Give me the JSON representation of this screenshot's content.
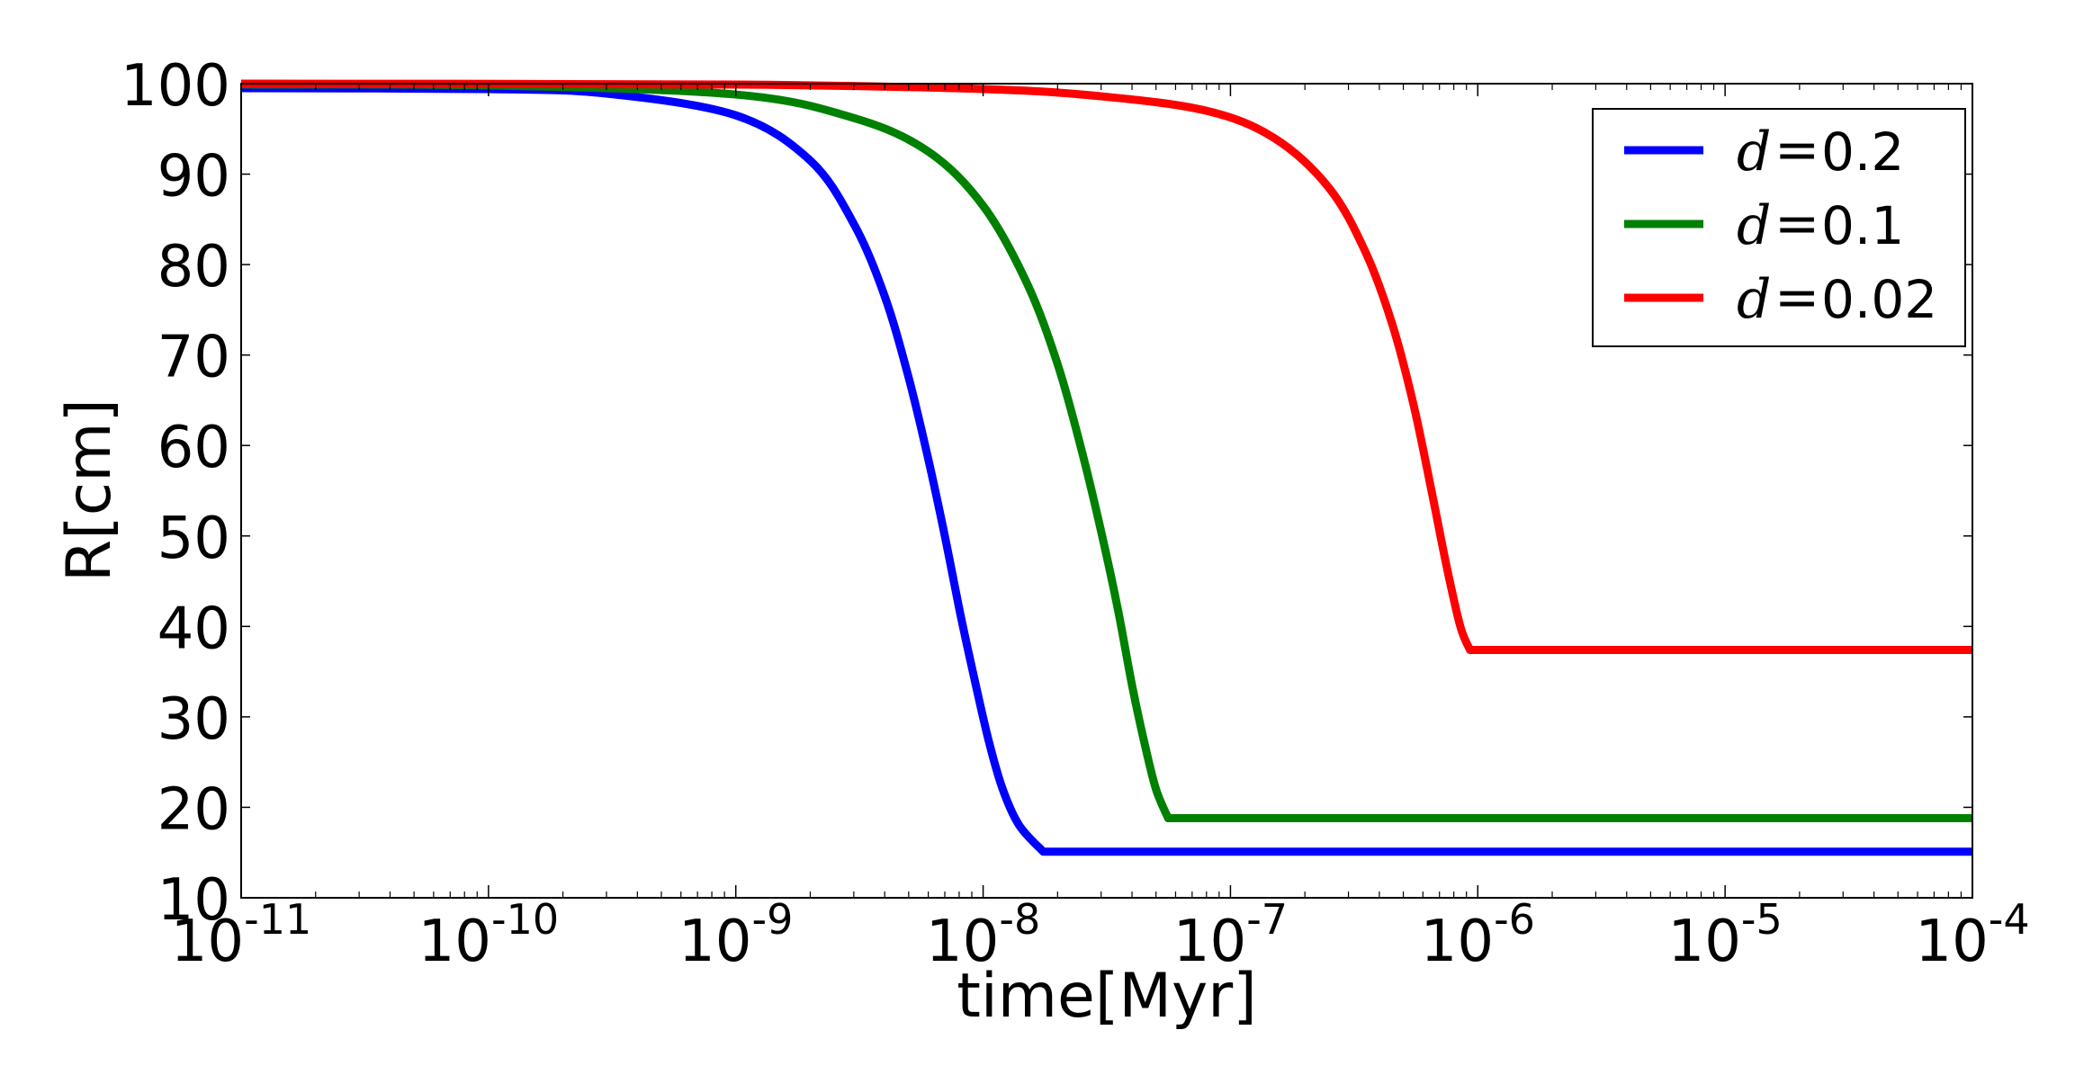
{
  "chart_data": {
    "type": "line",
    "title": "",
    "xlabel": "time[Myr]",
    "ylabel": "R[cm]",
    "xscale": "log",
    "xlim": [
      1e-11,
      0.0001
    ],
    "ylim": [
      10,
      100
    ],
    "grid": false,
    "legend_position": "upper right",
    "x_ticks": [
      {
        "exp": "-11"
      },
      {
        "exp": "-10"
      },
      {
        "exp": "-9"
      },
      {
        "exp": "-8"
      },
      {
        "exp": "-7"
      },
      {
        "exp": "-6"
      },
      {
        "exp": "-5"
      },
      {
        "exp": "-4"
      }
    ],
    "y_ticks": [
      10,
      20,
      30,
      40,
      50,
      60,
      70,
      80,
      90,
      100
    ],
    "series": [
      {
        "name": "d = 0.2",
        "d_label": "d",
        "value_label": "0.2",
        "color": "#0000ff",
        "points": [
          [
            1e-11,
            99.5
          ],
          [
            1e-10,
            99.4
          ],
          [
            3e-10,
            98.9
          ],
          [
            1e-09,
            96.5
          ],
          [
            2e-09,
            91.5
          ],
          [
            3e-09,
            84.5
          ],
          [
            4e-09,
            76.5
          ],
          [
            5e-09,
            67.5
          ],
          [
            6e-09,
            58.5
          ],
          [
            7e-09,
            50.0
          ],
          [
            8e-09,
            42.0
          ],
          [
            9e-09,
            35.5
          ],
          [
            1.05e-08,
            27.5
          ],
          [
            1.2e-08,
            22.0
          ],
          [
            1.4e-08,
            18.0
          ],
          [
            1.75e-08,
            15.1
          ],
          [
            0.0001,
            15.1
          ]
        ]
      },
      {
        "name": "d = 0.1",
        "d_label": "d",
        "value_label": "0.1",
        "color": "#008000",
        "points": [
          [
            1e-11,
            99.9
          ],
          [
            1e-10,
            99.8
          ],
          [
            1e-09,
            98.8
          ],
          [
            3e-09,
            96.2
          ],
          [
            6e-09,
            92.5
          ],
          [
            1e-08,
            86.5
          ],
          [
            1.5e-08,
            78.0
          ],
          [
            2e-08,
            69.0
          ],
          [
            2.5e-08,
            59.5
          ],
          [
            3e-08,
            50.5
          ],
          [
            3.5e-08,
            42.0
          ],
          [
            4e-08,
            33.5
          ],
          [
            4.5e-08,
            27.0
          ],
          [
            5e-08,
            22.0
          ],
          [
            5.6e-08,
            18.8
          ],
          [
            0.0001,
            18.8
          ]
        ]
      },
      {
        "name": "d = 0.02",
        "d_label": "d",
        "value_label": "0.02",
        "color": "#ff0000",
        "points": [
          [
            1e-11,
            100.0
          ],
          [
            1e-09,
            99.9
          ],
          [
            1e-08,
            99.4
          ],
          [
            3e-08,
            98.6
          ],
          [
            8e-08,
            97.0
          ],
          [
            1.5e-07,
            94.0
          ],
          [
            2.5e-07,
            88.5
          ],
          [
            3.5e-07,
            81.5
          ],
          [
            4.5e-07,
            73.5
          ],
          [
            5.5e-07,
            64.5
          ],
          [
            6.5e-07,
            55.0
          ],
          [
            7.5e-07,
            46.5
          ],
          [
            8.5e-07,
            40.0
          ],
          [
            9.3e-07,
            37.4
          ],
          [
            0.0001,
            37.4
          ]
        ]
      }
    ]
  },
  "legend": {
    "items": [
      {
        "var": "d",
        "eq": "=",
        "value": "0.2",
        "color": "#0000ff"
      },
      {
        "var": "d",
        "eq": "=",
        "value": "0.1",
        "color": "#008000"
      },
      {
        "var": "d",
        "eq": "=",
        "value": "0.02",
        "color": "#ff0000"
      }
    ]
  }
}
